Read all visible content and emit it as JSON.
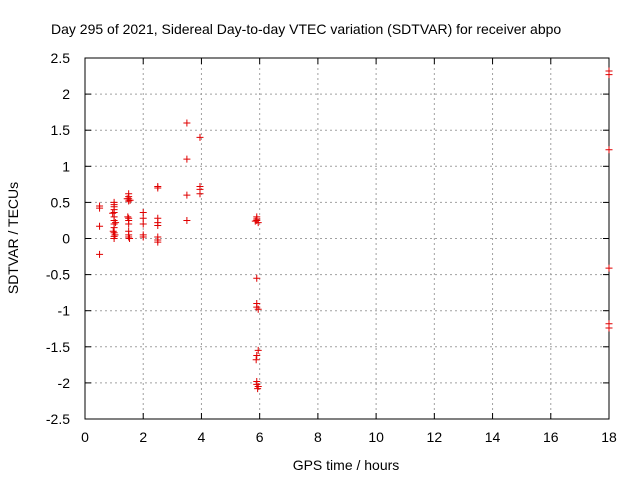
{
  "chart_data": {
    "type": "scatter",
    "title": "Day 295 of 2021, Sidereal Day-to-day VTEC variation (SDTVAR) for receiver abpo",
    "xlabel": "GPS time / hours",
    "ylabel": "SDTVAR / TECUs",
    "xlim": [
      0,
      18
    ],
    "ylim": [
      -2.5,
      2.5
    ],
    "xticks": [
      0,
      2,
      4,
      6,
      8,
      10,
      12,
      14,
      16,
      18
    ],
    "xtick_labels": [
      "0",
      "2",
      "4",
      "6",
      "8",
      "10",
      "12",
      "14",
      "16",
      "18"
    ],
    "yticks": [
      2.5,
      2,
      1.5,
      1,
      0.5,
      0,
      -0.5,
      -1,
      -1.5,
      -2,
      -2.5
    ],
    "ytick_labels": [
      "2.5",
      "2",
      "1.5",
      "1",
      "0.5",
      "0",
      "-0.5",
      "-1",
      "-1.5",
      "-2",
      "-2.5"
    ],
    "grid": true,
    "marker": "+",
    "color": "#e00000",
    "series": [
      {
        "name": "SDTVAR",
        "points": [
          [
            0.5,
            0.45
          ],
          [
            0.5,
            0.42
          ],
          [
            0.5,
            0.17
          ],
          [
            0.5,
            -0.22
          ],
          [
            1.0,
            0.5
          ],
          [
            1.0,
            0.47
          ],
          [
            1.0,
            0.44
          ],
          [
            1.0,
            0.4
          ],
          [
            1.0,
            0.36
          ],
          [
            1.0,
            0.3
          ],
          [
            1.0,
            0.25
          ],
          [
            1.0,
            0.2
          ],
          [
            1.0,
            0.15
          ],
          [
            1.0,
            0.08
          ],
          [
            1.0,
            0.03
          ],
          [
            1.0,
            0.0
          ],
          [
            0.95,
            0.35
          ],
          [
            1.05,
            0.22
          ],
          [
            0.97,
            0.1
          ],
          [
            1.03,
            0.05
          ],
          [
            1.5,
            0.62
          ],
          [
            1.5,
            0.58
          ],
          [
            1.5,
            0.55
          ],
          [
            1.5,
            0.52
          ],
          [
            1.5,
            0.28
          ],
          [
            1.5,
            0.25
          ],
          [
            1.5,
            0.2
          ],
          [
            1.5,
            0.1
          ],
          [
            1.5,
            0.05
          ],
          [
            1.5,
            0.02
          ],
          [
            1.45,
            0.55
          ],
          [
            1.55,
            0.53
          ],
          [
            1.47,
            0.3
          ],
          [
            1.53,
            0.0
          ],
          [
            2.0,
            0.36
          ],
          [
            2.0,
            0.28
          ],
          [
            2.0,
            0.2
          ],
          [
            2.0,
            0.05
          ],
          [
            2.0,
            0.02
          ],
          [
            2.5,
            0.72
          ],
          [
            2.5,
            0.7
          ],
          [
            2.5,
            0.28
          ],
          [
            2.5,
            0.22
          ],
          [
            2.5,
            0.18
          ],
          [
            2.5,
            0.02
          ],
          [
            2.5,
            -0.02
          ],
          [
            2.5,
            -0.05
          ],
          [
            3.5,
            1.6
          ],
          [
            3.5,
            1.1
          ],
          [
            3.5,
            0.6
          ],
          [
            3.5,
            0.25
          ],
          [
            3.95,
            1.4
          ],
          [
            3.95,
            0.72
          ],
          [
            3.95,
            0.68
          ],
          [
            3.95,
            0.62
          ],
          [
            5.9,
            0.3
          ],
          [
            5.9,
            0.27
          ],
          [
            5.9,
            0.25
          ],
          [
            5.95,
            0.22
          ],
          [
            5.85,
            0.24
          ],
          [
            5.9,
            -0.55
          ],
          [
            5.9,
            -0.9
          ],
          [
            5.9,
            -0.95
          ],
          [
            5.95,
            -0.98
          ],
          [
            5.95,
            -1.55
          ],
          [
            5.9,
            -1.62
          ],
          [
            5.88,
            -1.68
          ],
          [
            5.9,
            -1.98
          ],
          [
            5.9,
            -2.02
          ],
          [
            5.95,
            -2.05
          ],
          [
            5.93,
            -2.08
          ],
          [
            18.0,
            2.32
          ],
          [
            18.0,
            2.27
          ],
          [
            18.0,
            1.23
          ],
          [
            18.0,
            -0.41
          ],
          [
            18.0,
            -1.18
          ],
          [
            18.0,
            -1.24
          ]
        ]
      }
    ]
  }
}
